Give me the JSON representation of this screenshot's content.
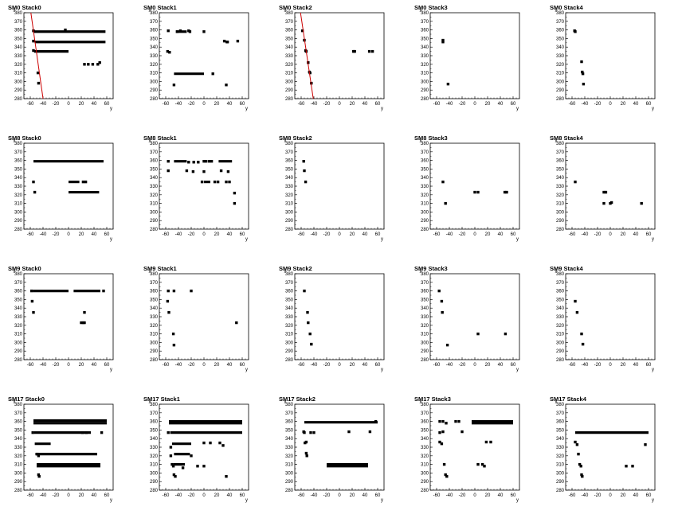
{
  "axes": {
    "x_label": "y",
    "y_label": "x",
    "xlim": [
      -70,
      70
    ],
    "ylim": [
      280,
      380
    ],
    "x_ticks": [
      -60,
      -40,
      -20,
      0,
      20,
      40,
      60
    ],
    "y_ticks": [
      280,
      290,
      300,
      310,
      320,
      330,
      340,
      350,
      360,
      370,
      380
    ]
  },
  "colors": {
    "marker": "#000000",
    "fit_line": "#cc0000",
    "frame": "#000000",
    "background": "#ffffff"
  },
  "chart_data": [
    {
      "type": "scatter",
      "title": "SM0 Stack0",
      "segments": [
        [
          -55,
          358,
          58,
          358
        ],
        [
          -53,
          346,
          58,
          346
        ],
        [
          -54,
          335,
          0,
          335
        ]
      ],
      "points": [
        [
          -55,
          359
        ],
        [
          -55,
          347
        ],
        [
          -55,
          336
        ],
        [
          -48,
          310
        ],
        [
          -47,
          298
        ],
        [
          -5,
          360
        ],
        [
          25,
          320
        ],
        [
          31,
          320
        ],
        [
          38,
          320
        ],
        [
          46,
          320
        ],
        [
          49,
          322
        ]
      ],
      "fit_line": [
        [
          -60,
          385
        ],
        [
          -39,
          275
        ]
      ]
    },
    {
      "type": "scatter",
      "title": "SM0 Stack1",
      "segments": [
        [
          -44,
          358,
          -27,
          358
        ],
        [
          -47,
          309,
          0,
          309
        ]
      ],
      "points": [
        [
          -56,
          359
        ],
        [
          -42,
          358
        ],
        [
          -37,
          359
        ],
        [
          -24,
          359
        ],
        [
          -22,
          358
        ],
        [
          0,
          358
        ],
        [
          -57,
          335
        ],
        [
          -54,
          334
        ],
        [
          -47,
          296
        ],
        [
          32,
          347
        ],
        [
          36,
          346
        ],
        [
          37,
          346
        ],
        [
          53,
          347
        ],
        [
          14,
          309
        ],
        [
          35,
          296
        ]
      ]
    },
    {
      "type": "scatter",
      "title": "SM0 Stack2",
      "segments": [],
      "points": [
        [
          -58,
          359
        ],
        [
          -55,
          348
        ],
        [
          -53,
          336
        ],
        [
          -52,
          335
        ],
        [
          -49,
          322
        ],
        [
          -47,
          311
        ],
        [
          -46,
          310
        ],
        [
          -44,
          298
        ],
        [
          22,
          335
        ],
        [
          24,
          335
        ],
        [
          47,
          335
        ],
        [
          52,
          335
        ]
      ],
      "fit_line": [
        [
          -62,
          385
        ],
        [
          -40,
          275
        ]
      ]
    },
    {
      "type": "scatter",
      "title": "SM0 Stack3",
      "segments": [],
      "points": [
        [
          -50,
          348
        ],
        [
          -50,
          346
        ],
        [
          -42,
          297
        ]
      ]
    },
    {
      "type": "scatter",
      "title": "SM0 Stack4",
      "segments": [],
      "points": [
        [
          -56,
          359
        ],
        [
          -55,
          358
        ],
        [
          -45,
          323
        ],
        [
          -44,
          311
        ],
        [
          -43,
          309
        ],
        [
          -42,
          297
        ]
      ]
    },
    {
      "type": "scatter",
      "title": "SM8 Stack0",
      "segments": [
        [
          -55,
          359,
          55,
          359
        ],
        [
          0,
          335,
          17,
          335
        ],
        [
          0,
          323,
          48,
          323
        ]
      ],
      "points": [
        [
          -55,
          335
        ],
        [
          -53,
          323
        ],
        [
          23,
          335
        ],
        [
          27,
          335
        ]
      ]
    },
    {
      "type": "scatter",
      "title": "SM8 Stack1",
      "segments": [
        [
          -47,
          359,
          -27,
          359
        ],
        [
          23,
          359,
          44,
          359
        ],
        [
          0,
          335,
          10,
          335
        ]
      ],
      "points": [
        [
          -56,
          359
        ],
        [
          -56,
          348
        ],
        [
          -24,
          358
        ],
        [
          -16,
          358
        ],
        [
          -9,
          358
        ],
        [
          0,
          359
        ],
        [
          3,
          359
        ],
        [
          8,
          359
        ],
        [
          12,
          359
        ],
        [
          -27,
          348
        ],
        [
          -17,
          347
        ],
        [
          0,
          347
        ],
        [
          -3,
          335
        ],
        [
          17,
          335
        ],
        [
          22,
          335
        ],
        [
          35,
          335
        ],
        [
          40,
          335
        ],
        [
          27,
          348
        ],
        [
          38,
          347
        ],
        [
          48,
          322
        ],
        [
          48,
          310
        ]
      ]
    },
    {
      "type": "scatter",
      "title": "SM8 Stack2",
      "segments": [],
      "points": [
        [
          -56,
          359
        ],
        [
          -55,
          348
        ],
        [
          -53,
          335
        ]
      ]
    },
    {
      "type": "scatter",
      "title": "SM8 Stack3",
      "segments": [],
      "points": [
        [
          -50,
          335
        ],
        [
          -46,
          310
        ],
        [
          0,
          323
        ],
        [
          5,
          323
        ],
        [
          47,
          323
        ],
        [
          50,
          323
        ]
      ]
    },
    {
      "type": "scatter",
      "title": "SM8 Stack4",
      "segments": [],
      "points": [
        [
          -55,
          335
        ],
        [
          -10,
          323
        ],
        [
          -7,
          323
        ],
        [
          -10,
          310
        ],
        [
          0,
          310
        ],
        [
          2,
          311
        ],
        [
          49,
          310
        ]
      ]
    },
    {
      "type": "scatter",
      "title": "SM9 Stack0",
      "segments": [
        [
          -56,
          360,
          0,
          360
        ],
        [
          8,
          360,
          50,
          360
        ]
      ],
      "points": [
        [
          -58,
          360
        ],
        [
          -57,
          348
        ],
        [
          -55,
          335
        ],
        [
          20,
          323
        ],
        [
          23,
          323
        ],
        [
          25,
          323
        ],
        [
          25,
          335
        ],
        [
          55,
          360
        ]
      ]
    },
    {
      "type": "scatter",
      "title": "SM9 Stack1",
      "segments": [],
      "points": [
        [
          -56,
          360
        ],
        [
          -47,
          360
        ],
        [
          -20,
          360
        ],
        [
          -57,
          348
        ],
        [
          -55,
          335
        ],
        [
          -48,
          310
        ],
        [
          -47,
          297
        ],
        [
          51,
          323
        ]
      ]
    },
    {
      "type": "scatter",
      "title": "SM9 Stack2",
      "segments": [],
      "points": [
        [
          -55,
          360
        ],
        [
          -50,
          335
        ],
        [
          -49,
          323
        ],
        [
          -46,
          310
        ],
        [
          -44,
          298
        ]
      ]
    },
    {
      "type": "scatter",
      "title": "SM9 Stack3",
      "segments": [],
      "points": [
        [
          -56,
          360
        ],
        [
          -52,
          348
        ],
        [
          -51,
          335
        ],
        [
          -43,
          297
        ],
        [
          5,
          310
        ],
        [
          48,
          310
        ]
      ]
    },
    {
      "type": "scatter",
      "title": "SM9 Stack4",
      "segments": [],
      "points": [
        [
          -55,
          348
        ],
        [
          -52,
          335
        ],
        [
          -45,
          310
        ],
        [
          -43,
          298
        ]
      ]
    },
    {
      "type": "scatter",
      "title": "SM17 Stack0",
      "segments": [
        [
          -55,
          361,
          60,
          361
        ],
        [
          -55,
          358,
          60,
          358
        ],
        [
          -54,
          347,
          35,
          347
        ],
        [
          -53,
          334,
          -28,
          334
        ],
        [
          -52,
          322,
          45,
          322
        ],
        [
          -50,
          310,
          50,
          310
        ],
        [
          -50,
          308,
          50,
          308
        ]
      ],
      "points": [
        [
          -56,
          347
        ],
        [
          22,
          347
        ],
        [
          28,
          347
        ],
        [
          52,
          347
        ],
        [
          -49,
          322
        ],
        [
          -47,
          320
        ],
        [
          -47,
          298
        ],
        [
          -46,
          296
        ]
      ]
    },
    {
      "type": "scatter",
      "title": "SM17 Stack1",
      "segments": [
        [
          -55,
          360,
          60,
          360
        ],
        [
          -55,
          358,
          60,
          358
        ],
        [
          -53,
          347,
          60,
          347
        ],
        [
          -50,
          334,
          -20,
          334
        ],
        [
          -47,
          322,
          -22,
          322
        ],
        [
          -48,
          310,
          -30,
          310
        ]
      ],
      "points": [
        [
          -56,
          347
        ],
        [
          -52,
          330
        ],
        [
          -52,
          320
        ],
        [
          -50,
          310
        ],
        [
          -48,
          308
        ],
        [
          -47,
          298
        ],
        [
          -45,
          296
        ],
        [
          -33,
          306
        ],
        [
          -20,
          320
        ],
        [
          -10,
          308
        ],
        [
          0,
          308
        ],
        [
          0,
          335
        ],
        [
          10,
          335
        ],
        [
          25,
          335
        ],
        [
          30,
          332
        ],
        [
          35,
          296
        ]
      ]
    },
    {
      "type": "scatter",
      "title": "SM17 Stack2",
      "segments": [
        [
          -55,
          359,
          60,
          359
        ],
        [
          -20,
          310,
          45,
          310
        ],
        [
          -20,
          308,
          45,
          308
        ]
      ],
      "points": [
        [
          -56,
          348
        ],
        [
          -55,
          347
        ],
        [
          -54,
          335
        ],
        [
          -52,
          336
        ],
        [
          -52,
          323
        ],
        [
          -51,
          320
        ],
        [
          -45,
          347
        ],
        [
          -40,
          347
        ],
        [
          15,
          348
        ],
        [
          48,
          348
        ],
        [
          57,
          360
        ]
      ]
    },
    {
      "type": "scatter",
      "title": "SM17 Stack3",
      "segments": [
        [
          -5,
          360,
          60,
          360
        ],
        [
          -5,
          358,
          60,
          358
        ]
      ],
      "points": [
        [
          -55,
          360
        ],
        [
          -50,
          360
        ],
        [
          -45,
          358
        ],
        [
          -30,
          360
        ],
        [
          -25,
          360
        ],
        [
          -55,
          347
        ],
        [
          -50,
          348
        ],
        [
          -20,
          348
        ],
        [
          -55,
          336
        ],
        [
          -52,
          334
        ],
        [
          -48,
          310
        ],
        [
          -46,
          298
        ],
        [
          -44,
          296
        ],
        [
          5,
          310
        ],
        [
          12,
          310
        ],
        [
          15,
          308
        ],
        [
          18,
          336
        ],
        [
          25,
          336
        ]
      ]
    },
    {
      "type": "scatter",
      "title": "SM17 Stack4",
      "segments": [
        [
          -55,
          347,
          60,
          347
        ]
      ],
      "points": [
        [
          -55,
          336
        ],
        [
          -52,
          333
        ],
        [
          -50,
          322
        ],
        [
          -48,
          310
        ],
        [
          -46,
          308
        ],
        [
          -45,
          298
        ],
        [
          -44,
          296
        ],
        [
          25,
          308
        ],
        [
          35,
          308
        ],
        [
          55,
          333
        ]
      ]
    }
  ]
}
